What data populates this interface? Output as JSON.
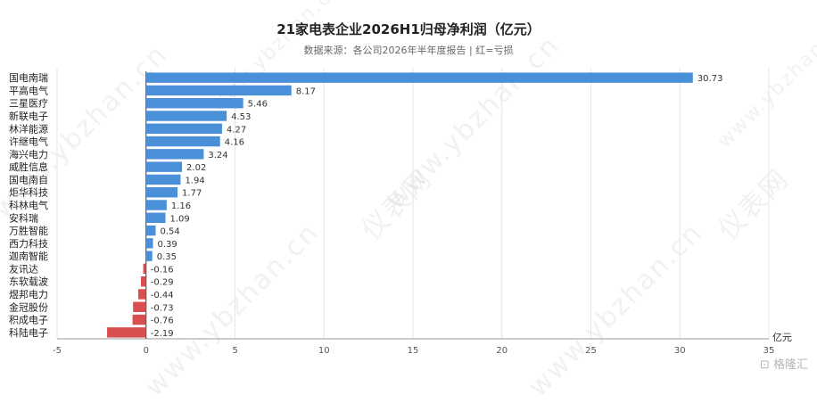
{
  "title": "21家电表企业2026H1归母净利润（亿元）",
  "subtitle": "数据来源：各公司2026年半年度报告 | 红=亏损",
  "watermark": {
    "site": "www.ybzhan.cn",
    "brand": "仪表网"
  },
  "logo": "格隆汇",
  "colors": {
    "positive": "#4a90d9",
    "negative": "#d94f4f",
    "grid": "#e6e6e6",
    "axis": "#333333"
  },
  "chart_data": {
    "type": "bar",
    "orientation": "horizontal",
    "categories": [
      "国电南瑞",
      "平高电气",
      "三星医疗",
      "新联电子",
      "林洋能源",
      "许继电气",
      "海兴电力",
      "威胜信息",
      "国电南自",
      "炬华科技",
      "科林电气",
      "安科瑞",
      "万胜智能",
      "西力科技",
      "迦南智能",
      "友讯达",
      "东软载波",
      "煜邦电力",
      "金冠股份",
      "积成电子",
      "科陆电子"
    ],
    "values": [
      30.73,
      8.17,
      5.46,
      4.53,
      4.27,
      4.16,
      3.24,
      2.02,
      1.94,
      1.77,
      1.16,
      1.09,
      0.54,
      0.39,
      0.35,
      -0.16,
      -0.29,
      -0.44,
      -0.73,
      -0.76,
      -2.19
    ],
    "value_labels": [
      "30.73",
      "8.17",
      "5.46",
      "4.53",
      "4.27",
      "4.16",
      "3.24",
      "2.02",
      "1.94",
      "1.77",
      "1.16",
      "1.09",
      "0.54",
      "0.39",
      "0.35",
      "-0.16",
      "-0.29",
      "-0.44",
      "-0.73",
      "-0.76",
      "-2.19"
    ],
    "xlim": [
      -5,
      35
    ],
    "xticks": [
      -5,
      0,
      5,
      10,
      15,
      20,
      25,
      30,
      35
    ],
    "xlabel": "亿元",
    "grid": "vertical"
  }
}
